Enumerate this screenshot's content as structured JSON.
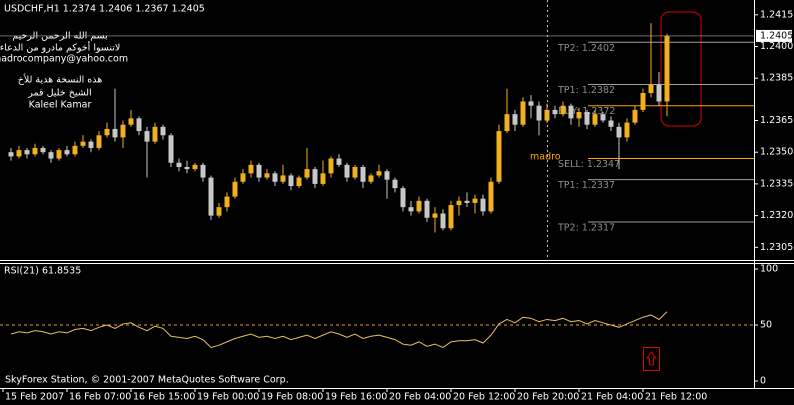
{
  "chart_data": [
    {
      "type": "candlestick",
      "title": "USDCHF,H1  1.2374 1.2406 1.2367 1.2405",
      "annotations": [
        "بسم الله الرحمن الرحيم",
        "لاتنسوا أخوكم مادرو من الدعاء",
        "madrocompany@yahoo.com",
        "هذه النسخة هدية للأخ",
        "الشيخ خليل قمر",
        "Kaleel Kamar",
        "madro",
        "SkyForex Station, © 2001-2007 MetaQuotes Software Corp."
      ],
      "categories": [
        "15 Feb 2007",
        null,
        null,
        null,
        null,
        null,
        null,
        null,
        "16 Feb 07:00",
        null,
        null,
        null,
        null,
        null,
        null,
        null,
        "16 Feb 15:00",
        null,
        null,
        null,
        null,
        null,
        null,
        null,
        "19 Feb 00:00",
        null,
        null,
        null,
        null,
        null,
        null,
        null,
        "19 Feb 08:00",
        null,
        null,
        null,
        null,
        null,
        null,
        null,
        "19 Feb 16:00",
        null,
        null,
        null,
        null,
        null,
        null,
        null,
        "20 Feb 04:00",
        null,
        null,
        null,
        null,
        null,
        null,
        null,
        "20 Feb 12:00",
        null,
        null,
        null,
        null,
        null,
        null,
        null,
        "20 Feb 20:00",
        null,
        null,
        null,
        null,
        null,
        null,
        null,
        "21 Feb 04:00",
        null,
        null,
        null,
        null,
        null,
        null,
        null,
        "21 Feb 12:00",
        null,
        null
      ],
      "open": [
        1.235,
        1.2348,
        1.2351,
        1.2349,
        1.2352,
        1.235,
        1.2347,
        1.2351,
        1.2349,
        1.2353,
        1.2355,
        1.2352,
        1.2358,
        1.2361,
        1.2357,
        1.2363,
        1.2366,
        1.236,
        1.2355,
        1.2362,
        1.2358,
        1.2345,
        1.2343,
        1.2342,
        1.2344,
        1.2338,
        1.232,
        1.2324,
        1.2329,
        1.2336,
        1.234,
        1.2344,
        1.2338,
        1.234,
        1.2336,
        1.2339,
        1.2334,
        1.2338,
        1.2342,
        1.2335,
        1.234,
        1.2347,
        1.2344,
        1.2338,
        1.2343,
        1.2336,
        1.2339,
        1.2341,
        1.2337,
        1.2333,
        1.2324,
        1.2322,
        1.2327,
        1.2319,
        1.2321,
        1.2314,
        1.2325,
        1.2327,
        1.2326,
        1.2328,
        1.2322,
        1.2336,
        1.236,
        1.2368,
        1.2363,
        1.2374,
        1.2372,
        1.2365,
        1.237,
        1.2368,
        1.2372,
        1.2366,
        1.2369,
        1.2363,
        1.2368,
        1.2365,
        1.2362,
        1.2357,
        1.2364,
        1.237,
        1.2378,
        1.2382,
        1.2374
      ],
      "high": [
        1.2352,
        1.2353,
        1.2352,
        1.2354,
        1.2353,
        1.2351,
        1.2352,
        1.2353,
        1.2355,
        1.2358,
        1.2356,
        1.236,
        1.2364,
        1.238,
        1.2365,
        1.237,
        1.2367,
        1.2362,
        1.2364,
        1.2363,
        1.2359,
        1.2347,
        1.2346,
        1.2345,
        1.2345,
        1.2339,
        1.2326,
        1.2331,
        1.2338,
        1.2342,
        1.2346,
        1.2345,
        1.2342,
        1.2341,
        1.2344,
        1.234,
        1.2339,
        1.2352,
        1.2343,
        1.2346,
        1.2348,
        1.2349,
        1.2345,
        1.2344,
        1.2344,
        1.234,
        1.2344,
        1.2342,
        1.2338,
        1.2334,
        1.2327,
        1.2329,
        1.2328,
        1.2324,
        1.2323,
        1.2327,
        1.2329,
        1.2331,
        1.233,
        1.233,
        1.2338,
        1.2363,
        1.238,
        1.237,
        1.2376,
        1.2377,
        1.2374,
        1.2373,
        1.2372,
        1.2374,
        1.2373,
        1.2371,
        1.237,
        1.237,
        1.2369,
        1.2367,
        1.2364,
        1.2366,
        1.2372,
        1.238,
        1.2411,
        1.2388,
        1.2406
      ],
      "low": [
        1.2346,
        1.2347,
        1.2347,
        1.2348,
        1.2349,
        1.2345,
        1.2346,
        1.2348,
        1.2348,
        1.2352,
        1.235,
        1.2351,
        1.2357,
        1.2355,
        1.2352,
        1.2362,
        1.2358,
        1.2338,
        1.2354,
        1.2356,
        1.2343,
        1.2341,
        1.234,
        1.2341,
        1.2336,
        1.2318,
        1.2319,
        1.2322,
        1.2328,
        1.2335,
        1.2338,
        1.2336,
        1.2337,
        1.2334,
        1.2335,
        1.2332,
        1.2333,
        1.2337,
        1.2333,
        1.2334,
        1.2338,
        1.2343,
        1.2336,
        1.2337,
        1.2333,
        1.2335,
        1.2338,
        1.2328,
        1.2331,
        1.2322,
        1.232,
        1.2321,
        1.2317,
        1.2312,
        1.2313,
        1.2313,
        1.232,
        1.2324,
        1.2321,
        1.232,
        1.2321,
        1.2335,
        1.2359,
        1.236,
        1.2362,
        1.2366,
        1.2358,
        1.2364,
        1.2366,
        1.2367,
        1.2363,
        1.2362,
        1.2361,
        1.2362,
        1.2364,
        1.236,
        1.2342,
        1.2355,
        1.2363,
        1.2369,
        1.2376,
        1.2372,
        1.2367
      ],
      "close": [
        1.2348,
        1.2351,
        1.2349,
        1.2352,
        1.235,
        1.2347,
        1.2351,
        1.2349,
        1.2353,
        1.2355,
        1.2352,
        1.2358,
        1.2361,
        1.2357,
        1.2363,
        1.2366,
        1.236,
        1.2355,
        1.2362,
        1.2358,
        1.2345,
        1.2343,
        1.2342,
        1.2344,
        1.2338,
        1.232,
        1.2324,
        1.2329,
        1.2336,
        1.234,
        1.2344,
        1.2338,
        1.234,
        1.2336,
        1.2339,
        1.2334,
        1.2338,
        1.2342,
        1.2335,
        1.234,
        1.2347,
        1.2344,
        1.2338,
        1.2343,
        1.2336,
        1.2339,
        1.2341,
        1.2337,
        1.2333,
        1.2324,
        1.2322,
        1.2327,
        1.2319,
        1.2321,
        1.2314,
        1.2325,
        1.2327,
        1.2326,
        1.2328,
        1.2322,
        1.2336,
        1.236,
        1.2368,
        1.2363,
        1.2374,
        1.2372,
        1.2365,
        1.237,
        1.2368,
        1.2372,
        1.2366,
        1.2369,
        1.2363,
        1.2368,
        1.2365,
        1.2362,
        1.2357,
        1.2364,
        1.237,
        1.2378,
        1.2382,
        1.2374,
        1.2405
      ],
      "up_color": "#f0b020",
      "down_color": "#c8c8c8",
      "ylim": [
        1.2299,
        1.2422
      ],
      "yticks": [
        1.2415,
        {
          "value": 1.24,
          "label": "1.2400"
        },
        1.2385,
        1.2365,
        {
          "value": 1.235,
          "label": "1.2350"
        },
        1.2335,
        {
          "value": 1.232,
          "label": "1.2320"
        },
        1.2305
      ],
      "levels": [
        {
          "label": "TP2: 1.2402",
          "value": 1.2402,
          "color": "#a0a0a0"
        },
        {
          "label": "TP1: 1.2382",
          "value": 1.2382,
          "color": "#a0a0a0"
        },
        {
          "label": "BUY: 1.2372",
          "value": 1.2372,
          "color": "#ffa500"
        },
        {
          "label": "SELL: 1.2347",
          "value": 1.2347,
          "color": "#ffa500"
        },
        {
          "label": "TP1: 1.2337",
          "value": 1.2337,
          "color": "#a0a0a0"
        },
        {
          "label": "TP2: 1.2317",
          "value": 1.2317,
          "color": "#a0a0a0"
        }
      ],
      "grid": false
    },
    {
      "type": "line",
      "title": "RSI(21) 61.8535",
      "color": "#e8c060",
      "values": [
        42,
        44,
        43,
        45,
        44,
        42,
        44,
        43,
        46,
        47,
        45,
        48,
        50,
        47,
        51,
        52,
        48,
        45,
        49,
        47,
        40,
        39,
        38,
        40,
        37,
        30,
        32,
        35,
        38,
        40,
        42,
        39,
        40,
        38,
        40,
        37,
        39,
        41,
        38,
        41,
        44,
        42,
        39,
        42,
        38,
        40,
        41,
        39,
        37,
        33,
        32,
        35,
        31,
        33,
        30,
        35,
        36,
        36,
        37,
        34,
        41,
        51,
        55,
        52,
        57,
        56,
        53,
        55,
        54,
        56,
        53,
        54,
        51,
        54,
        52,
        50,
        48,
        51,
        54,
        57,
        59,
        55,
        61.8535
      ],
      "ylim": [
        -6.2,
        105.4
      ],
      "yticks": [
        100,
        50,
        0
      ],
      "level": 50
    }
  ]
}
